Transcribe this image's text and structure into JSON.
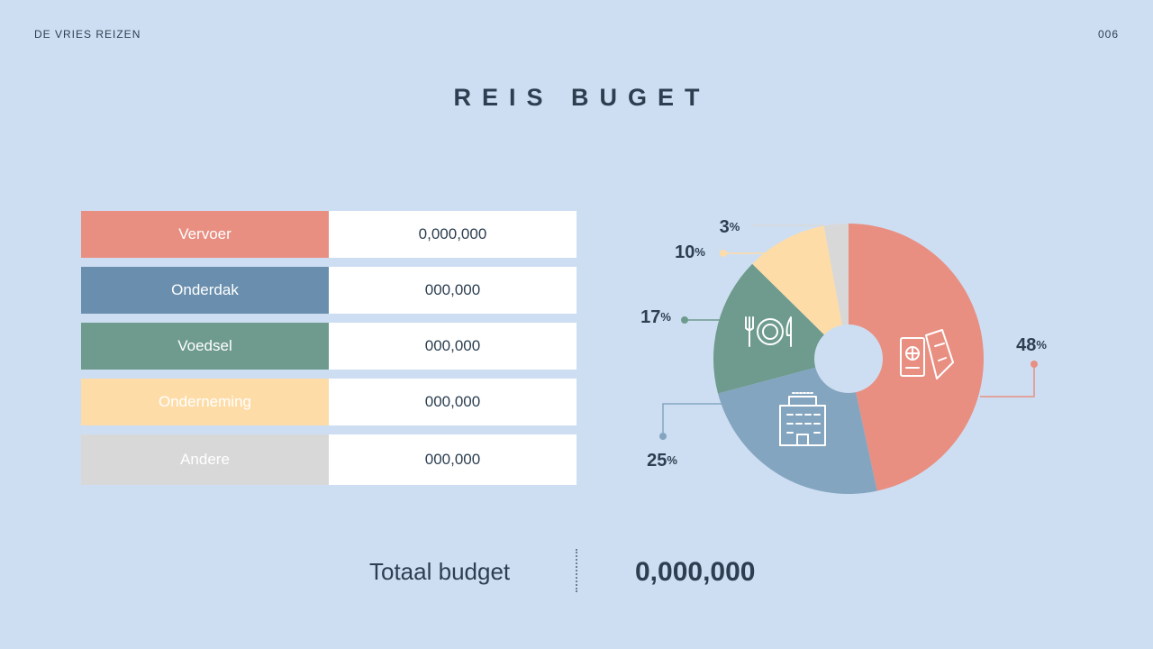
{
  "header": {
    "brand": "DE VRIES REIZEN",
    "page_number": "006"
  },
  "title": "REIS BUGET",
  "budget_rows": [
    {
      "label": "Vervoer",
      "value": "0,000,000",
      "color": "#e88f82"
    },
    {
      "label": "Onderdak",
      "value": "000,000",
      "color": "#6a8fae"
    },
    {
      "label": "Voedsel",
      "value": "000,000",
      "color": "#6e9b8d"
    },
    {
      "label": "Onderneming",
      "value": "000,000",
      "color": "#fddca8"
    },
    {
      "label": "Andere",
      "value": "000,000",
      "color": "#d8d8d8"
    }
  ],
  "chart_data": {
    "type": "pie",
    "categories": [
      "Vervoer",
      "Onderdak",
      "Voedsel",
      "Onderneming",
      "Andere"
    ],
    "values": [
      48,
      25,
      17,
      10,
      3
    ],
    "unit": "%",
    "colors": [
      "#e88f82",
      "#84a5c0",
      "#6e9b8d",
      "#fddca8",
      "#d8d8d8"
    ],
    "icons": [
      "passport-ticket-icon",
      "building-icon",
      "plate-cutlery-icon",
      null,
      null
    ]
  },
  "footer": {
    "total_label": "Totaal budget",
    "total_value": "0,000,000"
  }
}
